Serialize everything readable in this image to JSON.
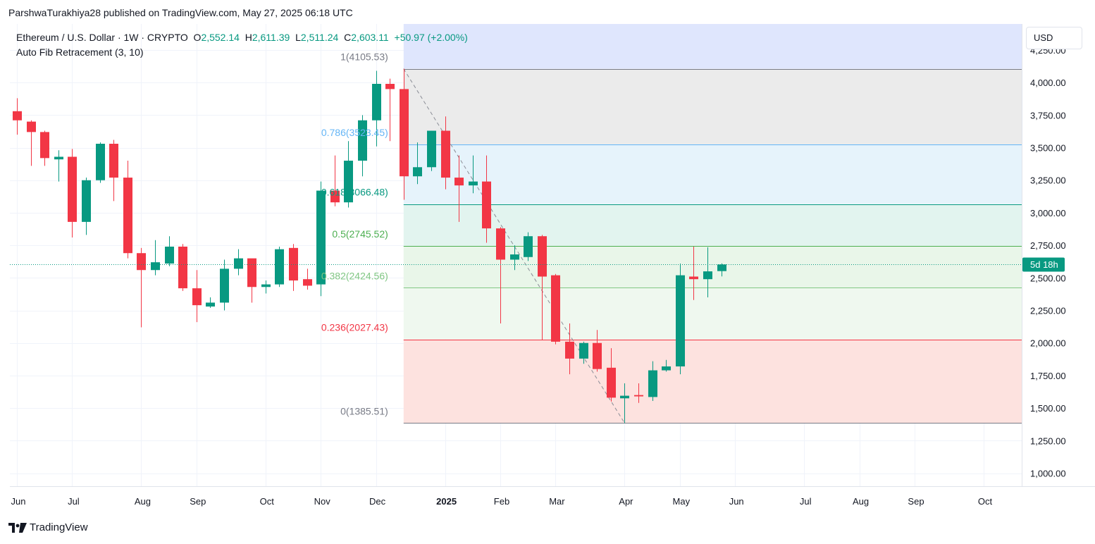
{
  "header": {
    "published": "ParshwaTurakhiya28 published on TradingView.com, May 27, 2025 06:18 UTC"
  },
  "legend": {
    "symbol": "Ethereum / U.S. Dollar · 1W · CRYPTO",
    "o_label": "O",
    "o_value": "2,552.14",
    "h_label": "H",
    "h_value": "2,611.39",
    "l_label": "L",
    "l_value": "2,511.24",
    "c_label": "C",
    "c_value": "2,603.11",
    "change": "+50.97 (+2.00%)"
  },
  "indicator": {
    "label": "Auto Fib Retracement (3, 10)"
  },
  "currency_button": {
    "label": "USD"
  },
  "price_badge": {
    "label": "5d 18h",
    "color": "#089981"
  },
  "footer": {
    "brand": "TradingView"
  },
  "colors": {
    "up": "#089981",
    "down": "#f23645",
    "fib_1": "#787b86",
    "fib_0786": "#64b5f6",
    "fib_0618": "#089981",
    "fib_05": "#4caf50",
    "fib_0382": "#81c784",
    "fib_0236": "#f23645",
    "fib_0": "#787b86"
  },
  "chart_data": {
    "type": "candlestick",
    "timeframe": "1W",
    "ylim": [
      900,
      4450
    ],
    "y_ticks": [
      {
        "value": 1000,
        "label": "1,000.00"
      },
      {
        "value": 1250,
        "label": "1,250.00"
      },
      {
        "value": 1500,
        "label": "1,500.00"
      },
      {
        "value": 1750,
        "label": "1,750.00"
      },
      {
        "value": 2000,
        "label": "2,000.00"
      },
      {
        "value": 2250,
        "label": "2,250.00"
      },
      {
        "value": 2500,
        "label": "2,500.00"
      },
      {
        "value": 2750,
        "label": "2,750.00"
      },
      {
        "value": 3000,
        "label": "3,000.00"
      },
      {
        "value": 3250,
        "label": "3,250.00"
      },
      {
        "value": 3500,
        "label": "3,500.00"
      },
      {
        "value": 3750,
        "label": "3,750.00"
      },
      {
        "value": 4000,
        "label": "4,000.00"
      },
      {
        "value": 4250,
        "label": "4,250.00"
      }
    ],
    "x_ticks": [
      {
        "week": 0,
        "label": "Jun",
        "bold": false
      },
      {
        "week": 4,
        "label": "Jul",
        "bold": false
      },
      {
        "week": 9,
        "label": "Aug",
        "bold": false
      },
      {
        "week": 13,
        "label": "Sep",
        "bold": false
      },
      {
        "week": 18,
        "label": "Oct",
        "bold": false
      },
      {
        "week": 22,
        "label": "Nov",
        "bold": false
      },
      {
        "week": 26,
        "label": "Dec",
        "bold": false
      },
      {
        "week": 31,
        "label": "2025",
        "bold": true
      },
      {
        "week": 35,
        "label": "Feb",
        "bold": false
      },
      {
        "week": 39,
        "label": "Mar",
        "bold": false
      },
      {
        "week": 44,
        "label": "Apr",
        "bold": false
      },
      {
        "week": 48,
        "label": "May",
        "bold": false
      },
      {
        "week": 52,
        "label": "Jun",
        "bold": false
      },
      {
        "week": 57,
        "label": "Jul",
        "bold": false
      },
      {
        "week": 61,
        "label": "Aug",
        "bold": false
      },
      {
        "week": 65,
        "label": "Sep",
        "bold": false
      },
      {
        "week": 70,
        "label": "Oct",
        "bold": false
      }
    ],
    "candles": [
      {
        "w": 0,
        "o": 3780,
        "h": 3880,
        "l": 3600,
        "c": 3710
      },
      {
        "w": 1,
        "o": 3700,
        "h": 3710,
        "l": 3360,
        "c": 3620
      },
      {
        "w": 2,
        "o": 3620,
        "h": 3630,
        "l": 3360,
        "c": 3420
      },
      {
        "w": 3,
        "o": 3410,
        "h": 3480,
        "l": 3240,
        "c": 3430
      },
      {
        "w": 4,
        "o": 3430,
        "h": 3490,
        "l": 2810,
        "c": 2930
      },
      {
        "w": 5,
        "o": 2930,
        "h": 3270,
        "l": 2830,
        "c": 3250
      },
      {
        "w": 6,
        "o": 3250,
        "h": 3540,
        "l": 3230,
        "c": 3530
      },
      {
        "w": 7,
        "o": 3530,
        "h": 3560,
        "l": 3090,
        "c": 3270
      },
      {
        "w": 8,
        "o": 3270,
        "h": 3400,
        "l": 2650,
        "c": 2690
      },
      {
        "w": 9,
        "o": 2690,
        "h": 2730,
        "l": 2120,
        "c": 2560
      },
      {
        "w": 10,
        "o": 2560,
        "h": 2790,
        "l": 2520,
        "c": 2620
      },
      {
        "w": 11,
        "o": 2610,
        "h": 2820,
        "l": 2590,
        "c": 2740
      },
      {
        "w": 12,
        "o": 2740,
        "h": 2760,
        "l": 2400,
        "c": 2420
      },
      {
        "w": 13,
        "o": 2420,
        "h": 2560,
        "l": 2160,
        "c": 2290
      },
      {
        "w": 14,
        "o": 2280,
        "h": 2350,
        "l": 2270,
        "c": 2310
      },
      {
        "w": 15,
        "o": 2310,
        "h": 2640,
        "l": 2250,
        "c": 2570
      },
      {
        "w": 16,
        "o": 2570,
        "h": 2720,
        "l": 2520,
        "c": 2650
      },
      {
        "w": 17,
        "o": 2650,
        "h": 2640,
        "l": 2310,
        "c": 2430
      },
      {
        "w": 18,
        "o": 2430,
        "h": 2480,
        "l": 2380,
        "c": 2450
      },
      {
        "w": 19,
        "o": 2450,
        "h": 2740,
        "l": 2430,
        "c": 2720
      },
      {
        "w": 20,
        "o": 2730,
        "h": 2760,
        "l": 2400,
        "c": 2480
      },
      {
        "w": 21,
        "o": 2490,
        "h": 2570,
        "l": 2410,
        "c": 2440
      },
      {
        "w": 22,
        "o": 2450,
        "h": 3240,
        "l": 2360,
        "c": 3170
      },
      {
        "w": 23,
        "o": 3170,
        "h": 3440,
        "l": 3050,
        "c": 3080
      },
      {
        "w": 24,
        "o": 3080,
        "h": 3550,
        "l": 3040,
        "c": 3400
      },
      {
        "w": 25,
        "o": 3400,
        "h": 3750,
        "l": 3280,
        "c": 3710
      },
      {
        "w": 26,
        "o": 3710,
        "h": 4090,
        "l": 3510,
        "c": 3990
      },
      {
        "w": 27,
        "o": 3990,
        "h": 4030,
        "l": 3550,
        "c": 3950
      },
      {
        "w": 28,
        "o": 3950,
        "h": 4106,
        "l": 3100,
        "c": 3280
      },
      {
        "w": 29,
        "o": 3280,
        "h": 3540,
        "l": 3220,
        "c": 3350
      },
      {
        "w": 30,
        "o": 3350,
        "h": 3630,
        "l": 3320,
        "c": 3630
      },
      {
        "w": 31,
        "o": 3630,
        "h": 3740,
        "l": 3180,
        "c": 3270
      },
      {
        "w": 32,
        "o": 3270,
        "h": 3440,
        "l": 2930,
        "c": 3210
      },
      {
        "w": 33,
        "o": 3210,
        "h": 3440,
        "l": 3150,
        "c": 3240
      },
      {
        "w": 34,
        "o": 3240,
        "h": 3440,
        "l": 2770,
        "c": 2880
      },
      {
        "w": 35,
        "o": 2880,
        "h": 2890,
        "l": 2150,
        "c": 2640
      },
      {
        "w": 36,
        "o": 2640,
        "h": 2750,
        "l": 2560,
        "c": 2680
      },
      {
        "w": 37,
        "o": 2660,
        "h": 2850,
        "l": 2630,
        "c": 2820
      },
      {
        "w": 38,
        "o": 2820,
        "h": 2830,
        "l": 2020,
        "c": 2510
      },
      {
        "w": 39,
        "o": 2520,
        "h": 2530,
        "l": 1990,
        "c": 2010
      },
      {
        "w": 40,
        "o": 2010,
        "h": 2150,
        "l": 1760,
        "c": 1880
      },
      {
        "w": 41,
        "o": 1880,
        "h": 2010,
        "l": 1840,
        "c": 2000
      },
      {
        "w": 42,
        "o": 2000,
        "h": 2100,
        "l": 1780,
        "c": 1800
      },
      {
        "w": 43,
        "o": 1810,
        "h": 1960,
        "l": 1550,
        "c": 1580
      },
      {
        "w": 44,
        "o": 1575,
        "h": 1690,
        "l": 1385,
        "c": 1595
      },
      {
        "w": 45,
        "o": 1600,
        "h": 1690,
        "l": 1540,
        "c": 1590
      },
      {
        "w": 46,
        "o": 1585,
        "h": 1860,
        "l": 1555,
        "c": 1790
      },
      {
        "w": 47,
        "o": 1790,
        "h": 1870,
        "l": 1780,
        "c": 1820
      },
      {
        "w": 48,
        "o": 1820,
        "h": 2610,
        "l": 1760,
        "c": 2520
      },
      {
        "w": 49,
        "o": 2510,
        "h": 2740,
        "l": 2330,
        "c": 2490
      },
      {
        "w": 50,
        "o": 2490,
        "h": 2735,
        "l": 2350,
        "c": 2550
      },
      {
        "w": 51,
        "o": 2552.14,
        "h": 2611.39,
        "l": 2511.24,
        "c": 2603.11
      }
    ],
    "last_price": 2603.11,
    "fib": {
      "start_week": 28,
      "levels": [
        {
          "ratio": 1,
          "price": 4105.53,
          "label": "1(4105.53)",
          "color": "#787b86"
        },
        {
          "ratio": 0.786,
          "price": 3523.45,
          "label": "0.786(3523.45)",
          "color": "#64b5f6"
        },
        {
          "ratio": 0.618,
          "price": 3066.48,
          "label": "0.618(3066.48)",
          "color": "#089981"
        },
        {
          "ratio": 0.5,
          "price": 2745.52,
          "label": "0.5(2745.52)",
          "color": "#4caf50"
        },
        {
          "ratio": 0.382,
          "price": 2424.56,
          "label": "0.382(2424.56)",
          "color": "#81c784"
        },
        {
          "ratio": 0.236,
          "price": 2027.43,
          "label": "0.236(2027.43)",
          "color": "#f23645"
        },
        {
          "ratio": 0,
          "price": 1385.51,
          "label": "0(1385.51)",
          "color": "#787b86"
        }
      ],
      "zones": [
        {
          "from": 4105.53,
          "to": 4450,
          "color": "#dfe6fd"
        },
        {
          "from": 3523.45,
          "to": 4105.53,
          "color": "#ebebeb"
        },
        {
          "from": 3066.48,
          "to": 3523.45,
          "color": "#e6f3fb"
        },
        {
          "from": 2745.52,
          "to": 3066.48,
          "color": "#e2f4ef"
        },
        {
          "from": 2424.56,
          "to": 2745.52,
          "color": "#e9f6e9"
        },
        {
          "from": 2027.43,
          "to": 2424.56,
          "color": "#eff8ef"
        },
        {
          "from": 1385.51,
          "to": 2027.43,
          "color": "#fde2df"
        }
      ],
      "trend_line": {
        "from_week": 28,
        "from_price": 4105.53,
        "to_week": 44,
        "to_price": 1385.51
      }
    }
  }
}
